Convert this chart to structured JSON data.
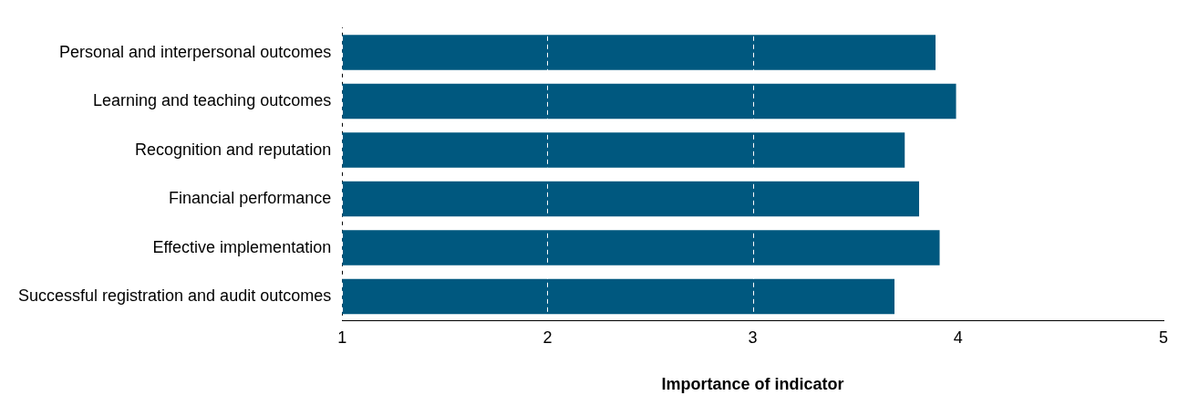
{
  "chart_data": {
    "type": "bar",
    "orientation": "horizontal",
    "xlabel": "Importance of indicator",
    "categories": [
      "Personal and interpersonal outcomes",
      "Learning and teaching outcomes",
      "Recognition and reputation",
      "Financial performance",
      "Effective implementation",
      "Successful registration and audit outcomes"
    ],
    "values": [
      3.89,
      3.99,
      3.74,
      3.81,
      3.91,
      3.69
    ],
    "color": "#00587f",
    "xlim": [
      1,
      5
    ],
    "xticks": [
      1,
      2,
      3,
      4,
      5
    ],
    "grid": "x",
    "line_style": "dashed",
    "legend": false
  }
}
